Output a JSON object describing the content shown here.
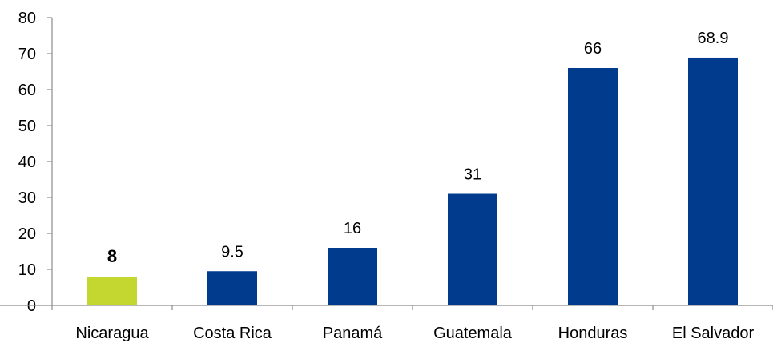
{
  "chart_data": {
    "type": "bar",
    "title": "",
    "xlabel": "",
    "ylabel": "",
    "categories": [
      "Nicaragua",
      "Costa Rica",
      "Panamá",
      "Guatemala",
      "Honduras",
      "El Salvador"
    ],
    "values": [
      8,
      9.5,
      16,
      31,
      66,
      68.9
    ],
    "value_labels": [
      "8",
      "9.5",
      "16",
      "31",
      "66",
      "68.9"
    ],
    "ylim": [
      0,
      80
    ],
    "yticks": [
      0,
      10,
      20,
      30,
      40,
      50,
      60,
      70,
      80
    ],
    "ytick_labels": [
      "0",
      "10",
      "20",
      "30",
      "40",
      "50",
      "60",
      "70",
      "80"
    ],
    "grid": false,
    "legend": "none",
    "highlight_index": 0,
    "colors": {
      "default_bar": "#003b8e",
      "highlight_bar": "#c3d730",
      "axis": "#8c8c8c",
      "text": "#000000"
    }
  }
}
